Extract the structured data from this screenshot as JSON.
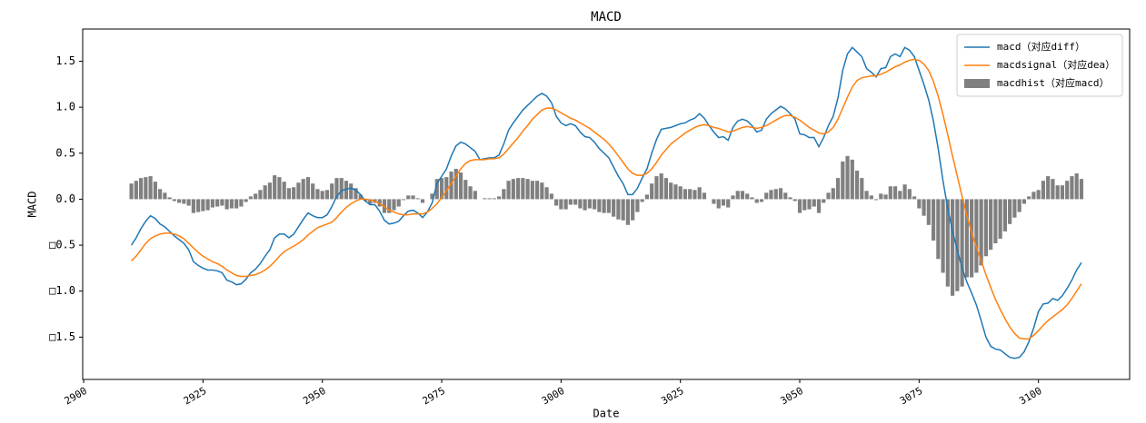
{
  "chart_data": {
    "type": "line",
    "title": "MACD",
    "x_label": "Date",
    "y_label": "MACD",
    "xlim": [
      2899.8,
      3119.1
    ],
    "xticks": [
      2900,
      2925,
      2950,
      2975,
      3000,
      3025,
      3050,
      3075,
      3100
    ],
    "ylim": [
      -1.96,
      1.85
    ],
    "yticks": [
      {
        "value": -1.5,
        "label": "□1.5"
      },
      {
        "value": -1.0,
        "label": "□1.0"
      },
      {
        "value": -0.5,
        "label": "□0.5"
      },
      {
        "value": 0,
        "label": "0.0"
      },
      0.5,
      {
        "value": 1.0,
        "label": "1.0"
      },
      1.5
    ],
    "legend": "upper right",
    "x": [
      2910,
      2911,
      2912,
      2913,
      2914,
      2915,
      2916,
      2917,
      2918,
      2919,
      2920,
      2921,
      2922,
      2923,
      2924,
      2925,
      2926,
      2927,
      2928,
      2929,
      2930,
      2931,
      2932,
      2933,
      2934,
      2935,
      2936,
      2937,
      2938,
      2939,
      2940,
      2941,
      2942,
      2943,
      2944,
      2945,
      2946,
      2947,
      2948,
      2949,
      2950,
      2951,
      2952,
      2953,
      2954,
      2955,
      2956,
      2957,
      2958,
      2959,
      2960,
      2961,
      2962,
      2963,
      2964,
      2965,
      2966,
      2967,
      2968,
      2969,
      2970,
      2971,
      2972,
      2973,
      2974,
      2975,
      2976,
      2977,
      2978,
      2979,
      2980,
      2981,
      2982,
      2983,
      2984,
      2985,
      2986,
      2987,
      2988,
      2989,
      2990,
      2991,
      2992,
      2993,
      2994,
      2995,
      2996,
      2997,
      2998,
      2999,
      3000,
      3001,
      3002,
      3003,
      3004,
      3005,
      3006,
      3007,
      3008,
      3009,
      3010,
      3011,
      3012,
      3013,
      3014,
      3015,
      3016,
      3017,
      3018,
      3019,
      3020,
      3021,
      3022,
      3023,
      3024,
      3025,
      3026,
      3027,
      3028,
      3029,
      3030,
      3031,
      3032,
      3033,
      3034,
      3035,
      3036,
      3037,
      3038,
      3039,
      3040,
      3041,
      3042,
      3043,
      3044,
      3045,
      3046,
      3047,
      3048,
      3049,
      3050,
      3051,
      3052,
      3053,
      3054,
      3055,
      3056,
      3057,
      3058,
      3059,
      3060,
      3061,
      3062,
      3063,
      3064,
      3065,
      3066,
      3067,
      3068,
      3069,
      3070,
      3071,
      3072,
      3073,
      3074,
      3075,
      3076,
      3077,
      3078,
      3079,
      3080,
      3081,
      3082,
      3083,
      3084,
      3085,
      3086,
      3087,
      3088,
      3089,
      3090,
      3091,
      3092,
      3093,
      3094,
      3095,
      3096,
      3097,
      3098,
      3099,
      3100,
      3101,
      3102,
      3103,
      3104,
      3105,
      3106,
      3107,
      3108,
      3109
    ],
    "series": [
      {
        "name": "macd（对应diff）",
        "color": "#1f77b4",
        "type": "line",
        "values": [
          -0.5,
          -0.42,
          -0.32,
          -0.24,
          -0.18,
          -0.21,
          -0.27,
          -0.3,
          -0.35,
          -0.4,
          -0.44,
          -0.48,
          -0.55,
          -0.68,
          -0.72,
          -0.75,
          -0.77,
          -0.77,
          -0.78,
          -0.8,
          -0.88,
          -0.9,
          -0.93,
          -0.92,
          -0.87,
          -0.8,
          -0.76,
          -0.7,
          -0.62,
          -0.55,
          -0.42,
          -0.38,
          -0.38,
          -0.42,
          -0.38,
          -0.3,
          -0.22,
          -0.15,
          -0.18,
          -0.2,
          -0.2,
          -0.17,
          -0.08,
          0.03,
          0.09,
          0.11,
          0.12,
          0.1,
          0.05,
          -0.02,
          -0.06,
          -0.06,
          -0.13,
          -0.23,
          -0.27,
          -0.26,
          -0.24,
          -0.18,
          -0.13,
          -0.12,
          -0.15,
          -0.2,
          -0.14,
          -0.04,
          0.17,
          0.25,
          0.33,
          0.47,
          0.58,
          0.62,
          0.6,
          0.56,
          0.52,
          0.43,
          0.44,
          0.45,
          0.45,
          0.48,
          0.6,
          0.75,
          0.83,
          0.9,
          0.97,
          1.02,
          1.07,
          1.12,
          1.15,
          1.12,
          1.05,
          0.9,
          0.83,
          0.8,
          0.82,
          0.8,
          0.73,
          0.68,
          0.67,
          0.62,
          0.55,
          0.5,
          0.45,
          0.35,
          0.25,
          0.17,
          0.05,
          0.05,
          0.12,
          0.23,
          0.33,
          0.5,
          0.65,
          0.76,
          0.77,
          0.78,
          0.8,
          0.82,
          0.83,
          0.86,
          0.88,
          0.93,
          0.88,
          0.8,
          0.73,
          0.67,
          0.68,
          0.64,
          0.78,
          0.85,
          0.87,
          0.85,
          0.8,
          0.73,
          0.75,
          0.87,
          0.93,
          0.97,
          1.01,
          0.98,
          0.93,
          0.87,
          0.71,
          0.7,
          0.67,
          0.67,
          0.57,
          0.67,
          0.8,
          0.9,
          1.1,
          1.4,
          1.58,
          1.65,
          1.6,
          1.55,
          1.42,
          1.38,
          1.33,
          1.42,
          1.43,
          1.55,
          1.58,
          1.55,
          1.65,
          1.62,
          1.55,
          1.4,
          1.25,
          1.08,
          0.85,
          0.55,
          0.2,
          -0.1,
          -0.35,
          -0.55,
          -0.75,
          -0.9,
          -1.02,
          -1.15,
          -1.32,
          -1.5,
          -1.6,
          -1.63,
          -1.64,
          -1.68,
          -1.72,
          -1.73,
          -1.72,
          -1.66,
          -1.55,
          -1.4,
          -1.22,
          -1.14,
          -1.13,
          -1.08,
          -1.1,
          -1.05,
          -0.97,
          -0.88,
          -0.77,
          -0.69
        ]
      },
      {
        "name": "macdsignal（对应dea）",
        "color": "#ff7f0e",
        "type": "line",
        "values": [
          -0.67,
          -0.62,
          -0.55,
          -0.48,
          -0.43,
          -0.4,
          -0.38,
          -0.37,
          -0.37,
          -0.38,
          -0.4,
          -0.43,
          -0.48,
          -0.53,
          -0.58,
          -0.62,
          -0.65,
          -0.68,
          -0.7,
          -0.73,
          -0.77,
          -0.8,
          -0.83,
          -0.84,
          -0.84,
          -0.83,
          -0.82,
          -0.8,
          -0.77,
          -0.73,
          -0.68,
          -0.62,
          -0.57,
          -0.54,
          -0.51,
          -0.48,
          -0.44,
          -0.39,
          -0.35,
          -0.31,
          -0.29,
          -0.27,
          -0.25,
          -0.2,
          -0.14,
          -0.09,
          -0.05,
          -0.02,
          0.0,
          0.0,
          -0.01,
          -0.02,
          -0.05,
          -0.08,
          -0.12,
          -0.14,
          -0.16,
          -0.17,
          -0.17,
          -0.16,
          -0.16,
          -0.16,
          -0.14,
          -0.1,
          -0.05,
          0.02,
          0.09,
          0.17,
          0.25,
          0.33,
          0.39,
          0.42,
          0.43,
          0.43,
          0.43,
          0.44,
          0.44,
          0.45,
          0.49,
          0.55,
          0.61,
          0.67,
          0.74,
          0.8,
          0.87,
          0.92,
          0.97,
          0.99,
          0.99,
          0.97,
          0.94,
          0.91,
          0.88,
          0.86,
          0.83,
          0.8,
          0.77,
          0.73,
          0.69,
          0.65,
          0.6,
          0.54,
          0.47,
          0.4,
          0.33,
          0.28,
          0.26,
          0.26,
          0.28,
          0.33,
          0.4,
          0.48,
          0.54,
          0.6,
          0.64,
          0.68,
          0.72,
          0.75,
          0.78,
          0.8,
          0.81,
          0.8,
          0.78,
          0.77,
          0.75,
          0.73,
          0.74,
          0.76,
          0.78,
          0.79,
          0.78,
          0.77,
          0.78,
          0.8,
          0.83,
          0.86,
          0.89,
          0.91,
          0.91,
          0.89,
          0.86,
          0.82,
          0.78,
          0.75,
          0.72,
          0.71,
          0.73,
          0.78,
          0.87,
          0.99,
          1.11,
          1.22,
          1.29,
          1.32,
          1.33,
          1.34,
          1.34,
          1.36,
          1.38,
          1.41,
          1.44,
          1.46,
          1.49,
          1.51,
          1.52,
          1.51,
          1.47,
          1.4,
          1.28,
          1.12,
          0.92,
          0.7,
          0.47,
          0.25,
          0.03,
          -0.18,
          -0.36,
          -0.52,
          -0.67,
          -0.82,
          -0.96,
          -1.09,
          -1.2,
          -1.3,
          -1.39,
          -1.46,
          -1.51,
          -1.52,
          -1.52,
          -1.48,
          -1.43,
          -1.37,
          -1.32,
          -1.28,
          -1.24,
          -1.2,
          -1.15,
          -1.08,
          -1.0,
          -0.92
        ]
      },
      {
        "name": "macdhist（对应macd）",
        "color": "#808080",
        "type": "bar",
        "values": [
          0.17,
          0.2,
          0.23,
          0.24,
          0.25,
          0.19,
          0.11,
          0.07,
          0.02,
          -0.02,
          -0.04,
          -0.05,
          -0.07,
          -0.15,
          -0.14,
          -0.13,
          -0.12,
          -0.09,
          -0.08,
          -0.07,
          -0.11,
          -0.1,
          -0.1,
          -0.08,
          -0.03,
          0.03,
          0.06,
          0.1,
          0.15,
          0.18,
          0.26,
          0.24,
          0.19,
          0.12,
          0.13,
          0.18,
          0.22,
          0.24,
          0.17,
          0.11,
          0.09,
          0.1,
          0.17,
          0.23,
          0.23,
          0.2,
          0.17,
          0.12,
          0.05,
          -0.02,
          -0.05,
          -0.04,
          -0.08,
          -0.15,
          -0.15,
          -0.12,
          -0.08,
          -0.01,
          0.04,
          0.04,
          0.01,
          -0.04,
          0.0,
          0.06,
          0.22,
          0.23,
          0.24,
          0.3,
          0.33,
          0.29,
          0.21,
          0.14,
          0.09,
          0.0,
          0.01,
          0.01,
          0.01,
          0.03,
          0.11,
          0.2,
          0.22,
          0.23,
          0.23,
          0.22,
          0.2,
          0.2,
          0.18,
          0.13,
          0.06,
          -0.07,
          -0.11,
          -0.11,
          -0.06,
          -0.06,
          -0.1,
          -0.12,
          -0.1,
          -0.11,
          -0.14,
          -0.15,
          -0.15,
          -0.19,
          -0.22,
          -0.23,
          -0.28,
          -0.23,
          -0.14,
          -0.03,
          0.05,
          0.17,
          0.25,
          0.28,
          0.23,
          0.18,
          0.16,
          0.14,
          0.11,
          0.11,
          0.1,
          0.13,
          0.07,
          0.0,
          -0.05,
          -0.1,
          -0.07,
          -0.09,
          0.04,
          0.09,
          0.09,
          0.06,
          0.02,
          -0.04,
          -0.03,
          0.07,
          0.1,
          0.11,
          0.12,
          0.07,
          0.02,
          -0.02,
          -0.15,
          -0.12,
          -0.11,
          -0.08,
          -0.15,
          -0.04,
          0.07,
          0.12,
          0.23,
          0.41,
          0.47,
          0.43,
          0.31,
          0.23,
          0.09,
          0.04,
          -0.01,
          0.06,
          0.05,
          0.14,
          0.14,
          0.09,
          0.16,
          0.11,
          0.03,
          -0.1,
          -0.18,
          -0.28,
          -0.45,
          -0.65,
          -0.8,
          -0.95,
          -1.05,
          -1.0,
          -0.95,
          -0.85,
          -0.85,
          -0.8,
          -0.72,
          -0.62,
          -0.55,
          -0.48,
          -0.43,
          -0.35,
          -0.27,
          -0.2,
          -0.14,
          -0.05,
          0.03,
          0.08,
          0.1,
          0.2,
          0.25,
          0.22,
          0.15,
          0.15,
          0.2,
          0.25,
          0.28,
          0.22
        ]
      }
    ]
  }
}
